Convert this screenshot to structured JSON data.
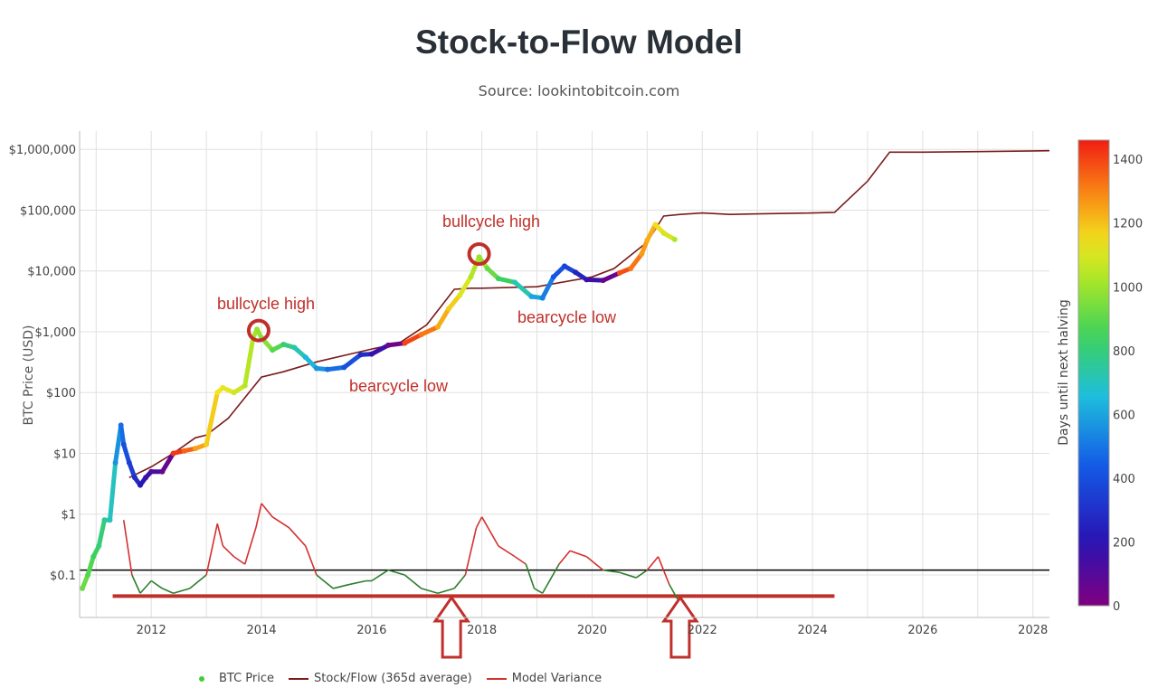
{
  "title": "Stock-to-Flow Model",
  "subtitle": "Source: lookintobitcoin.com",
  "colors": {
    "stock_flow": "#7a1a1a",
    "variance": "#d43030",
    "variance_low": "#2e7d2e",
    "annotation": "#c0302a",
    "grid": "#e0e0e0",
    "reference_line": "#000000"
  },
  "annotations": {
    "bull1": "bullcycle high",
    "bull2": "bullcycle high",
    "bear1": "bearcycle low",
    "bear2": "bearcycle low"
  },
  "colorbar": {
    "title": "Days until next halving",
    "ticks": [
      "1400",
      "1200",
      "1000",
      "800",
      "600",
      "400",
      "200",
      "0"
    ]
  },
  "legend": {
    "btc_price": "BTC Price",
    "stock_flow": "Stock/Flow (365d average)",
    "variance": "Model Variance"
  },
  "chart_data": {
    "type": "scatter",
    "title": "Stock-to-Flow Model",
    "xlabel": "",
    "ylabel": "BTC Price (USD)",
    "y_scale": "log",
    "xlim": [
      2010.7,
      2028.3
    ],
    "ylim": [
      0.02,
      2000000
    ],
    "x_ticks": [
      "2012",
      "2014",
      "2016",
      "2018",
      "2020",
      "2022",
      "2024",
      "2026",
      "2028"
    ],
    "y_ticks": [
      "$1,000,000",
      "$100,000",
      "$10,000",
      "$1,000",
      "$100",
      "$10",
      "$1",
      "$0.1"
    ],
    "series": [
      {
        "name": "BTC Price",
        "x": [
          2010.75,
          2010.85,
          2010.95,
          2011.05,
          2011.15,
          2011.25,
          2011.35,
          2011.45,
          2011.5,
          2011.6,
          2011.7,
          2011.8,
          2011.9,
          2012.0,
          2012.2,
          2012.4,
          2012.6,
          2012.8,
          2013.0,
          2013.2,
          2013.3,
          2013.5,
          2013.7,
          2013.85,
          2013.92,
          2014.0,
          2014.2,
          2014.4,
          2014.6,
          2014.8,
          2015.0,
          2015.2,
          2015.5,
          2015.8,
          2016.0,
          2016.3,
          2016.6,
          2016.9,
          2017.2,
          2017.4,
          2017.6,
          2017.8,
          2017.95,
          2018.1,
          2018.3,
          2018.6,
          2018.9,
          2019.1,
          2019.3,
          2019.5,
          2019.7,
          2019.9,
          2020.2,
          2020.5,
          2020.7,
          2020.9,
          2021.0,
          2021.15,
          2021.3,
          2021.5
        ],
        "y": [
          0.06,
          0.1,
          0.2,
          0.3,
          0.8,
          0.8,
          7,
          29,
          14,
          7,
          4,
          3,
          4,
          5,
          5,
          10,
          11,
          12,
          14,
          100,
          120,
          100,
          130,
          800,
          1100,
          800,
          500,
          620,
          550,
          380,
          250,
          240,
          260,
          420,
          430,
          600,
          650,
          900,
          1200,
          2400,
          4000,
          8000,
          17000,
          11000,
          7500,
          6500,
          3800,
          3600,
          8000,
          12000,
          9500,
          7200,
          7000,
          9300,
          11000,
          19000,
          32000,
          58000,
          42000,
          33000
        ],
        "days_until_halving": [
          920,
          880,
          840,
          800,
          760,
          700,
          560,
          480,
          400,
          340,
          280,
          220,
          160,
          120,
          60,
          1420,
          1350,
          1250,
          1180,
          1140,
          1120,
          1080,
          1040,
          1010,
          990,
          960,
          890,
          800,
          720,
          640,
          560,
          480,
          400,
          280,
          160,
          40,
          1400,
          1320,
          1230,
          1180,
          1100,
          1030,
          990,
          920,
          840,
          720,
          600,
          520,
          420,
          360,
          260,
          160,
          60,
          1380,
          1320,
          1260,
          1230,
          1150,
          1090,
          1030
        ]
      },
      {
        "name": "Stock/Flow (365d average)",
        "x": [
          2011.6,
          2012.0,
          2012.4,
          2012.8,
          2013.0,
          2013.4,
          2014.0,
          2014.4,
          2015.0,
          2016.0,
          2016.5,
          2017.0,
          2017.5,
          2017.8,
          2018.0,
          2019.0,
          2020.0,
          2020.4,
          2021.0,
          2021.3,
          2021.6,
          2022.0,
          2022.5,
          2023.0,
          2024.0,
          2024.4,
          2025.0,
          2025.4,
          2026.0,
          2027.0,
          2028.3
        ],
        "y": [
          4,
          6,
          10,
          18,
          20,
          38,
          180,
          220,
          320,
          520,
          650,
          1300,
          5000,
          5200,
          5200,
          5500,
          8000,
          11000,
          30000,
          80000,
          85000,
          90000,
          85000,
          87000,
          90000,
          92000,
          300000,
          900000,
          900000,
          920000,
          950000
        ]
      },
      {
        "name": "Model Variance",
        "x": [
          2011.5,
          2011.65,
          2011.8,
          2012.0,
          2012.2,
          2012.4,
          2012.7,
          2013.0,
          2013.2,
          2013.3,
          2013.5,
          2013.7,
          2013.9,
          2014.0,
          2014.2,
          2014.5,
          2014.8,
          2015.0,
          2015.3,
          2015.6,
          2015.9,
          2016.0,
          2016.3,
          2016.6,
          2016.9,
          2017.2,
          2017.5,
          2017.7,
          2017.9,
          2018.0,
          2018.3,
          2018.6,
          2018.8,
          2018.95,
          2019.1,
          2019.4,
          2019.6,
          2019.9,
          2020.2,
          2020.5,
          2020.8,
          2021.0,
          2021.2,
          2021.4,
          2021.55
        ],
        "y": [
          0.8,
          0.1,
          0.05,
          0.08,
          0.06,
          0.05,
          0.06,
          0.1,
          0.7,
          0.3,
          0.2,
          0.15,
          0.6,
          1.5,
          0.9,
          0.6,
          0.3,
          0.1,
          0.06,
          0.07,
          0.08,
          0.08,
          0.12,
          0.1,
          0.06,
          0.05,
          0.06,
          0.1,
          0.6,
          0.9,
          0.3,
          0.2,
          0.15,
          0.06,
          0.05,
          0.15,
          0.25,
          0.2,
          0.12,
          0.11,
          0.09,
          0.12,
          0.2,
          0.07,
          0.04
        ]
      }
    ],
    "horizontal_lines": [
      {
        "y": 0.12
      },
      {
        "y": 0.045,
        "x_range": [
          2011.3,
          2024.4
        ]
      }
    ],
    "markers": [
      {
        "type": "circle",
        "x": 2013.95,
        "y": 1050
      },
      {
        "type": "circle",
        "x": 2017.95,
        "y": 19000
      },
      {
        "type": "arrow",
        "x": 2017.45
      },
      {
        "type": "arrow",
        "x": 2021.6
      }
    ],
    "grid": true,
    "legend_position": "bottom"
  }
}
